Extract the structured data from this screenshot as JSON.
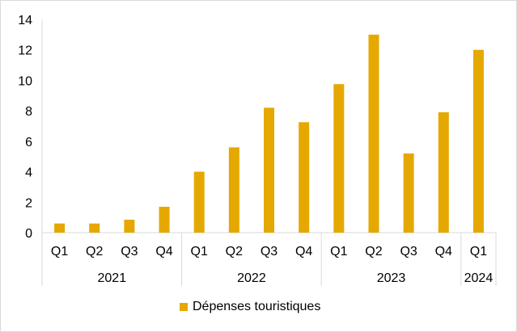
{
  "chart_data": {
    "type": "bar",
    "title": "",
    "xlabel": "",
    "ylabel": "",
    "ylim": [
      0,
      14
    ],
    "yticks": [
      0,
      2,
      4,
      6,
      8,
      10,
      12,
      14
    ],
    "categories": [
      "Q1",
      "Q2",
      "Q3",
      "Q4",
      "Q1",
      "Q2",
      "Q3",
      "Q4",
      "Q1",
      "Q2",
      "Q3",
      "Q4",
      "Q1"
    ],
    "groups": [
      {
        "label": "2021",
        "count": 4
      },
      {
        "label": "2022",
        "count": 4
      },
      {
        "label": "2023",
        "count": 4
      },
      {
        "label": "2024",
        "count": 1
      }
    ],
    "series": [
      {
        "name": "Dépenses touristiques",
        "color": "#E5A800",
        "values": [
          0.6,
          0.6,
          0.85,
          1.7,
          4.0,
          5.6,
          8.2,
          7.25,
          9.75,
          13.0,
          5.2,
          7.9,
          12.0
        ]
      }
    ],
    "grid": false,
    "legend": "bottom"
  }
}
